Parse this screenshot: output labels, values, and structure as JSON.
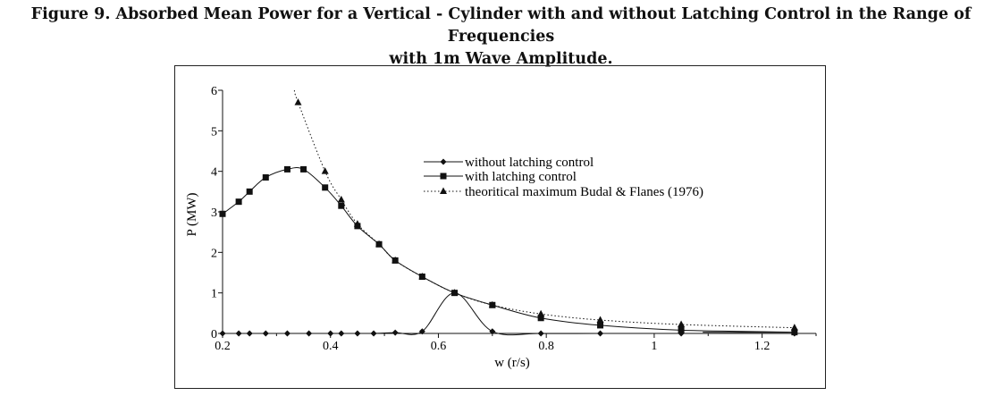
{
  "figure": {
    "title_line1": "Figure 9. Absorbed Mean Power for a Vertical - Cylinder with and without Latching Control in the Range of Frequencies",
    "title_line2": "with 1m Wave Amplitude."
  },
  "chart_data": {
    "type": "line",
    "xlabel": "w (r/s)",
    "ylabel": "P (MW)",
    "xlim": [
      0.2,
      1.3
    ],
    "ylim": [
      0,
      6
    ],
    "x_ticks": [
      "0.2",
      "0.4",
      "0.6",
      "0.8",
      "1",
      "1.2"
    ],
    "y_ticks": [
      "0",
      "1",
      "2",
      "3",
      "4",
      "5",
      "6"
    ],
    "grid": false,
    "legend_position": "center-right",
    "series": [
      {
        "name": "without latching control",
        "marker": "diamond",
        "line": "solid",
        "x": [
          0.2,
          0.23,
          0.25,
          0.28,
          0.32,
          0.36,
          0.4,
          0.42,
          0.45,
          0.48,
          0.52,
          0.57,
          0.63,
          0.7,
          0.79,
          0.9,
          1.05,
          1.26
        ],
        "y": [
          0,
          0,
          0,
          0,
          0,
          0,
          0,
          0,
          0,
          0,
          0.02,
          0.05,
          1.0,
          0.05,
          0,
          0,
          0,
          0
        ]
      },
      {
        "name": "with latching control",
        "marker": "square",
        "line": "solid",
        "x": [
          0.2,
          0.23,
          0.25,
          0.28,
          0.32,
          0.35,
          0.39,
          0.42,
          0.45,
          0.49,
          0.52,
          0.57,
          0.63,
          0.7,
          0.79,
          0.9,
          1.05,
          1.26
        ],
        "y": [
          2.95,
          3.25,
          3.5,
          3.85,
          4.05,
          4.05,
          3.6,
          3.15,
          2.65,
          2.2,
          1.8,
          1.4,
          1.0,
          0.7,
          0.38,
          0.2,
          0.08,
          0.03
        ]
      },
      {
        "name": "theoritical maximum Budal & Flanes (1976)",
        "marker": "triangle",
        "line": "dotted",
        "x": [
          0.34,
          0.39,
          0.42,
          0.45,
          0.49,
          0.52,
          0.57,
          0.63,
          0.7,
          0.79,
          0.9,
          1.05,
          1.26
        ],
        "y": [
          5.7,
          4.0,
          3.3,
          2.7,
          2.2,
          1.8,
          1.4,
          1.0,
          0.7,
          0.48,
          0.33,
          0.22,
          0.14
        ]
      }
    ]
  }
}
